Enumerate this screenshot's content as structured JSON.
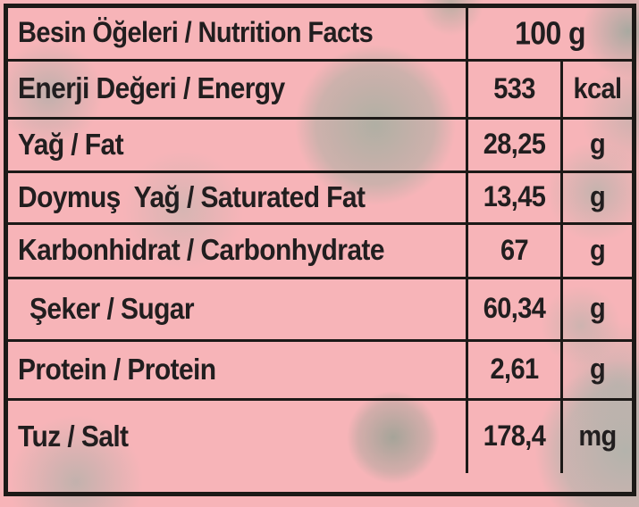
{
  "colors": {
    "background_pink": "#f7b4b8",
    "blob_gray_green": "#aab2a6",
    "border_black": "#1c1917",
    "text_black": "#211e1f"
  },
  "table": {
    "header": {
      "label": "Besin Öğeleri / Nutrition Facts",
      "amount": "100 g"
    },
    "rows": [
      {
        "label": "Enerji Değeri / Energy",
        "value": "533",
        "unit": "kcal"
      },
      {
        "label": "Yağ / Fat",
        "value": "28,25",
        "unit": "g"
      },
      {
        "label": "Doymuş  Yağ / Saturated Fat",
        "value": "13,45",
        "unit": "g"
      },
      {
        "label": "Karbonhidrat / Carbonhydrate",
        "value": "67",
        "unit": "g"
      },
      {
        "label": "Şeker / Sugar",
        "value": "60,34",
        "unit": "g"
      },
      {
        "label": "Protein / Protein",
        "value": "2,61",
        "unit": "g"
      },
      {
        "label": "Tuz / Salt",
        "value": "178,4",
        "unit": "mg"
      }
    ]
  }
}
